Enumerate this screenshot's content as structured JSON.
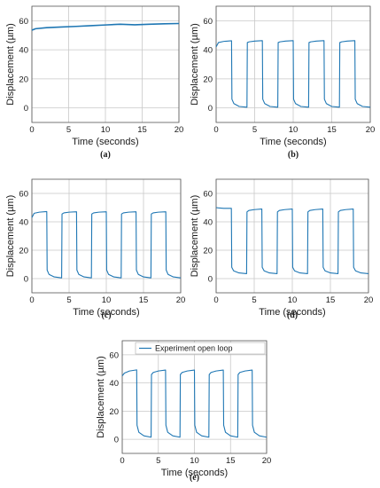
{
  "chart_data": [
    {
      "type": "line",
      "panel": "(a)",
      "xlabel": "Time (seconds)",
      "ylabel": "Displacement (µm)",
      "xlim": [
        0,
        20
      ],
      "ylim": [
        -10,
        70
      ],
      "xticks": [
        0,
        5,
        10,
        15,
        20
      ],
      "yticks": [
        0,
        20,
        40,
        60
      ],
      "grid": true,
      "series": [
        {
          "x": [
            0,
            0.5,
            2,
            4,
            6,
            8,
            10,
            12,
            14,
            16,
            18,
            20
          ],
          "values": [
            53.5,
            54.5,
            55.2,
            55.7,
            56.1,
            56.6,
            57.1,
            57.6,
            57.2,
            57.6,
            57.9,
            58.1
          ]
        }
      ]
    },
    {
      "type": "line",
      "panel": "(b)",
      "xlabel": "Time (seconds)",
      "ylabel": "Displacement (µm)",
      "xlim": [
        0,
        20
      ],
      "ylim": [
        -10,
        70
      ],
      "xticks": [
        0,
        5,
        10,
        15,
        20
      ],
      "yticks": [
        0,
        20,
        40,
        60
      ],
      "grid": true,
      "series": [
        {
          "x": [
            0,
            0.3,
            1,
            2,
            2.05,
            2.3,
            3,
            4,
            4.05,
            4.3,
            5,
            6,
            6.05,
            6.3,
            7,
            8,
            8.05,
            8.3,
            9,
            10,
            10.05,
            10.3,
            11,
            12,
            12.05,
            12.3,
            13,
            14,
            14.05,
            14.3,
            15,
            16,
            16.05,
            16.3,
            17,
            18,
            18.05,
            18.3,
            19,
            20
          ],
          "values": [
            42,
            45,
            45.8,
            46.2,
            6,
            3,
            1,
            0.5,
            45,
            45.5,
            46,
            46.3,
            6,
            3,
            1,
            0.5,
            45,
            45.5,
            46,
            46.3,
            6,
            3,
            1,
            0.5,
            45,
            45.5,
            46,
            46.3,
            6,
            3,
            1,
            0.5,
            45,
            45.5,
            46,
            46.3,
            6,
            3,
            1,
            0.5
          ]
        }
      ]
    },
    {
      "type": "line",
      "panel": "(c)",
      "xlabel": "Time (seconds)",
      "ylabel": "Displacement (µm)",
      "xlim": [
        0,
        20
      ],
      "ylim": [
        -10,
        70
      ],
      "xticks": [
        0,
        5,
        10,
        15,
        20
      ],
      "yticks": [
        0,
        20,
        40,
        60
      ],
      "grid": true,
      "series": [
        {
          "x": [
            0,
            0.3,
            1,
            2,
            2.05,
            2.3,
            3,
            4,
            4.05,
            4.3,
            5,
            6,
            6.05,
            6.3,
            7,
            8,
            8.05,
            8.3,
            9,
            10,
            10.05,
            10.3,
            11,
            12,
            12.05,
            12.3,
            13,
            14,
            14.05,
            14.3,
            15,
            16,
            16.05,
            16.3,
            17,
            18,
            18.05,
            18.3,
            19,
            20
          ],
          "values": [
            43,
            46,
            46.8,
            47.2,
            6,
            3,
            1.2,
            0.5,
            45.5,
            46.3,
            46.8,
            47.1,
            6,
            3,
            1.2,
            0.5,
            45.5,
            46.3,
            46.8,
            47.1,
            6,
            3,
            1.2,
            0.5,
            45.5,
            46.3,
            46.8,
            47.1,
            6,
            3,
            1.2,
            0.5,
            45.5,
            46.3,
            46.8,
            47.1,
            6,
            3,
            1.2,
            0.5
          ]
        }
      ]
    },
    {
      "type": "line",
      "panel": "(d)",
      "xlabel": "Time (seconds)",
      "ylabel": "Displacement (µm)",
      "xlim": [
        0,
        20
      ],
      "ylim": [
        -10,
        70
      ],
      "xticks": [
        0,
        5,
        10,
        15,
        20
      ],
      "yticks": [
        0,
        20,
        40,
        60
      ],
      "grid": true,
      "series": [
        {
          "x": [
            0,
            0.3,
            1,
            2,
            2.05,
            2.3,
            3,
            4,
            4.05,
            4.3,
            5,
            6,
            6.05,
            6.3,
            7,
            8,
            8.05,
            8.3,
            9,
            10,
            10.05,
            10.3,
            11,
            12,
            12.05,
            12.3,
            13,
            14,
            14.05,
            14.3,
            15,
            16,
            16.05,
            16.3,
            17,
            18,
            18.05,
            18.3,
            19,
            20
          ],
          "values": [
            50,
            49.8,
            49.5,
            49.5,
            8,
            5.5,
            4,
            3.5,
            47,
            48,
            48.6,
            49,
            8,
            5.5,
            4,
            3.5,
            47,
            48,
            48.6,
            49,
            8,
            5.5,
            4,
            3.5,
            47,
            48,
            48.6,
            49,
            8,
            5.5,
            4,
            3.5,
            47,
            48,
            48.6,
            49,
            8,
            5.5,
            4,
            3.5
          ]
        }
      ]
    },
    {
      "type": "line",
      "panel": "(e)",
      "xlabel": "Time (seconds)",
      "ylabel": "Displacement (µm)",
      "xlim": [
        0,
        20
      ],
      "ylim": [
        -10,
        70
      ],
      "xticks": [
        0,
        5,
        10,
        15,
        20
      ],
      "yticks": [
        0,
        20,
        40,
        60
      ],
      "grid": true,
      "legend": "top-right",
      "series": [
        {
          "name": "Experiment open loop",
          "x": [
            0,
            0.3,
            1,
            2,
            2.05,
            2.3,
            3,
            4,
            4.05,
            4.3,
            5,
            6,
            6.05,
            6.3,
            7,
            8,
            8.05,
            8.3,
            9,
            10,
            10.05,
            10.3,
            11,
            12,
            12.05,
            12.3,
            13,
            14,
            14.05,
            14.3,
            15,
            16,
            16.05,
            16.3,
            17,
            18,
            18.05,
            18.3,
            19,
            20
          ],
          "values": [
            45,
            47,
            48.5,
            49.3,
            10,
            5,
            2.5,
            1.5,
            46,
            47.5,
            48.5,
            49.2,
            10,
            5,
            2.5,
            1.5,
            46,
            47.5,
            48.5,
            49.2,
            10,
            5,
            2.5,
            1.5,
            46,
            47.5,
            48.5,
            49.2,
            10,
            5,
            2.5,
            1.5,
            46,
            47.5,
            48.5,
            49.2,
            10,
            5,
            2.5,
            1.5
          ]
        }
      ]
    }
  ],
  "colors": {
    "line": "#1f77b4",
    "grid": "#c8c8c8",
    "axis": "#555555",
    "text": "#1a1a1a"
  }
}
